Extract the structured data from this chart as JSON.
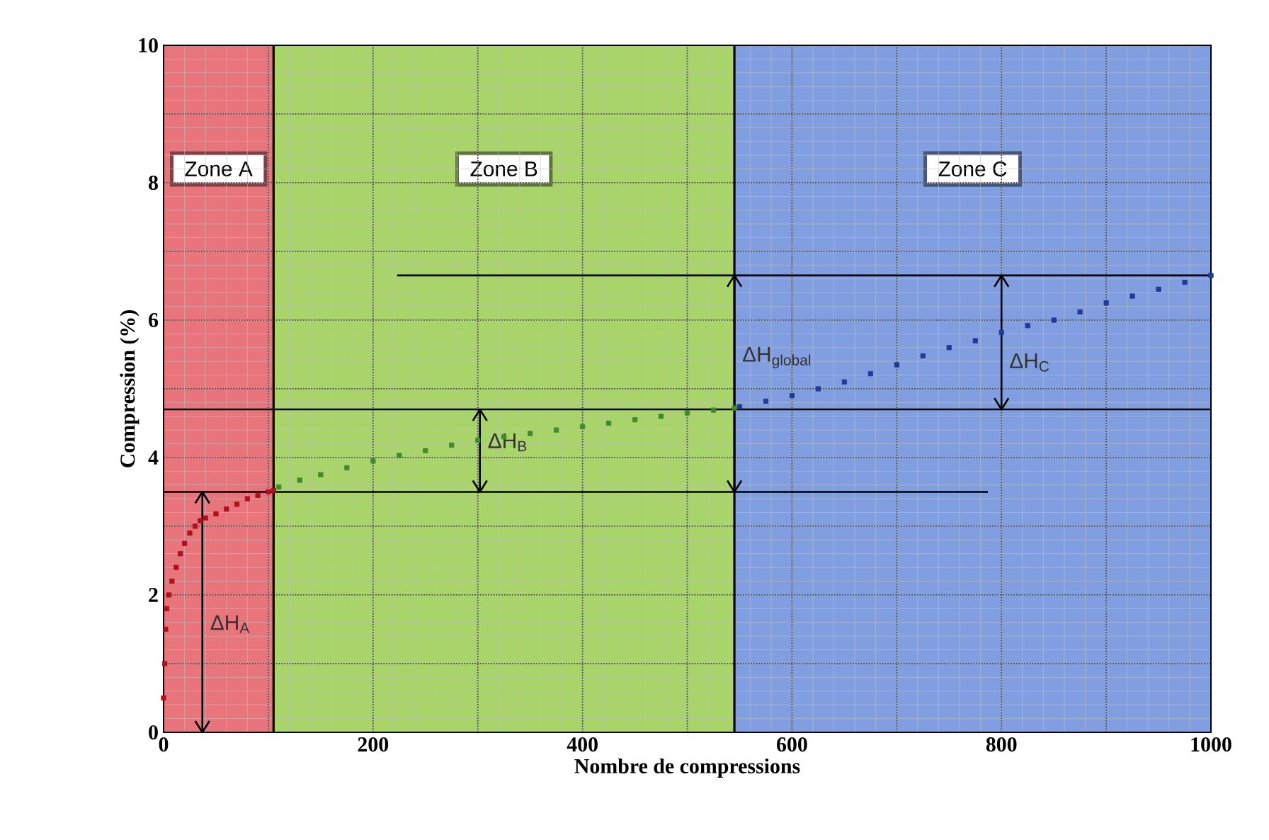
{
  "chart_data": {
    "type": "scatter",
    "xlabel": "Nombre de compressions",
    "ylabel": "Compression (%)",
    "xlim": [
      0,
      1000
    ],
    "ylim": [
      0,
      10
    ],
    "xticks": [
      0,
      {
        "value": 100,
        "label": null
      },
      200,
      {
        "value": 300,
        "label": null
      },
      400,
      {
        "value": 500,
        "label": null
      },
      600,
      {
        "value": 700,
        "label": null
      },
      800,
      {
        "value": 900,
        "label": null
      },
      1000
    ],
    "yticks": [
      0,
      {
        "value": 1,
        "label": null
      },
      2,
      {
        "value": 3,
        "label": null
      },
      4,
      {
        "value": 5,
        "label": null
      },
      6,
      {
        "value": 7,
        "label": null
      },
      8,
      {
        "value": 9,
        "label": null
      },
      10
    ],
    "grid": true,
    "bands": [
      {
        "axis": "x",
        "from": 0,
        "to": 105,
        "label": "Zone A",
        "color": "#e8747c"
      },
      {
        "axis": "x",
        "from": 105,
        "to": 545,
        "label": "Zone B",
        "color": "#a9d46a"
      },
      {
        "axis": "x",
        "from": 545,
        "to": 1000,
        "label": "Zone C",
        "color": "#819fe0"
      }
    ],
    "ref_lines": [
      {
        "axis": "x",
        "value": 105,
        "label": null
      },
      {
        "axis": "x",
        "value": 545,
        "label": null
      }
    ],
    "series": [
      {
        "marker": "square",
        "color": "#b0101c",
        "x": [
          0,
          1,
          2,
          3,
          5,
          8,
          12,
          16,
          20,
          25,
          30,
          35,
          40,
          50,
          60,
          70,
          80,
          90,
          100,
          105
        ],
        "values": [
          0.5,
          1.0,
          1.5,
          1.8,
          2.0,
          2.2,
          2.4,
          2.6,
          2.75,
          2.9,
          3.0,
          3.08,
          3.12,
          3.18,
          3.25,
          3.32,
          3.4,
          3.45,
          3.5,
          3.52
        ]
      },
      {
        "marker": "square",
        "color": "#3f8a2c",
        "x": [
          110,
          130,
          150,
          175,
          200,
          225,
          250,
          275,
          300,
          325,
          350,
          375,
          400,
          425,
          450,
          475,
          500,
          525,
          545
        ],
        "values": [
          3.57,
          3.67,
          3.75,
          3.85,
          3.95,
          4.03,
          4.1,
          4.18,
          4.25,
          4.3,
          4.35,
          4.4,
          4.45,
          4.5,
          4.55,
          4.6,
          4.65,
          4.69,
          4.72
        ]
      },
      {
        "marker": "square",
        "color": "#23399a",
        "x": [
          550,
          575,
          600,
          625,
          650,
          675,
          700,
          725,
          750,
          775,
          800,
          825,
          850,
          875,
          900,
          925,
          950,
          975,
          1000
        ],
        "values": [
          4.74,
          4.82,
          4.9,
          5.0,
          5.1,
          5.22,
          5.35,
          5.48,
          5.6,
          5.7,
          5.82,
          5.92,
          6.0,
          6.12,
          6.25,
          6.35,
          6.45,
          6.55,
          6.65
        ]
      },
      {
        "type": "line",
        "color": "#000000",
        "x": [
          0,
          787
        ],
        "values": [
          3.5,
          3.5
        ]
      },
      {
        "type": "line",
        "color": "#000000",
        "x": [
          0,
          1000
        ],
        "values": [
          4.7,
          4.7
        ]
      },
      {
        "type": "line",
        "color": "#000000",
        "x": [
          223,
          1000
        ],
        "values": [
          6.65,
          6.65
        ]
      },
      {
        "type": "line",
        "color": "#000000",
        "x": [
          37,
          37
        ],
        "values": [
          0,
          3.5
        ]
      },
      {
        "type": "line",
        "color": "#000000",
        "x": [
          302,
          302
        ],
        "values": [
          3.5,
          4.7
        ]
      },
      {
        "type": "line",
        "color": "#000000",
        "x": [
          545,
          545
        ],
        "values": [
          3.5,
          6.65
        ]
      },
      {
        "type": "line",
        "color": "#000000",
        "x": [
          800,
          800
        ],
        "values": [
          4.7,
          6.65
        ]
      }
    ],
    "annotations": [
      "ΔH$_{A}$",
      "ΔH$_{B}$",
      "ΔH$_{global}$",
      "ΔH$_{C}$"
    ]
  }
}
